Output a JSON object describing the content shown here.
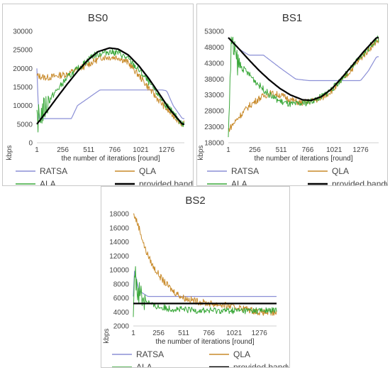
{
  "colors": {
    "RATSA": "#8b8fd6",
    "QLA": "#c88a2a",
    "ALA": "#3aa83a",
    "provided bandwidth": "#000000"
  },
  "chart_data": [
    {
      "type": "line",
      "title": "BS0",
      "xlabel": "the number of iterations [round]",
      "ylabel": "kbps",
      "xlim": [
        1,
        1450
      ],
      "ylim": [
        0,
        30000
      ],
      "xticks": [
        "1",
        "256",
        "511",
        "766",
        "1021",
        "1276"
      ],
      "yticks": [
        "0",
        "5000",
        "10000",
        "15000",
        "20000",
        "25000",
        "30000"
      ],
      "legend_position": "bottom",
      "series": [
        {
          "name": "RATSA",
          "x": [
            1,
            20,
            340,
            400,
            620,
            700,
            1230,
            1276,
            1340,
            1430
          ],
          "values": [
            20000,
            6500,
            6500,
            10000,
            14200,
            14200,
            14200,
            14000,
            10000,
            6500
          ]
        },
        {
          "name": "QLA",
          "x": [
            1,
            100,
            300,
            500,
            640,
            800,
            900,
            1021,
            1150,
            1276,
            1430
          ],
          "values": [
            18000,
            17500,
            18500,
            21000,
            23000,
            23000,
            21500,
            17500,
            13000,
            9000,
            5000
          ]
        },
        {
          "name": "ALA",
          "x": [
            1,
            50,
            150,
            300,
            450,
            550,
            700,
            800,
            900,
            1021,
            1150,
            1276,
            1430
          ],
          "values": [
            6000,
            8000,
            12500,
            17500,
            21000,
            23500,
            24500,
            24200,
            22500,
            19000,
            14500,
            10000,
            5000
          ]
        },
        {
          "name": "provided bandwidth",
          "x": [
            1,
            100,
            200,
            300,
            400,
            500,
            600,
            715,
            800,
            900,
            1000,
            1100,
            1200,
            1300,
            1430
          ],
          "values": [
            5000,
            8500,
            12200,
            15800,
            19200,
            22200,
            24500,
            25500,
            25200,
            23600,
            20800,
            17300,
            13300,
            9200,
            5000
          ]
        }
      ]
    },
    {
      "type": "line",
      "title": "BS1",
      "xlabel": "the number of iterations [round]",
      "ylabel": "kbps",
      "xlim": [
        1,
        1450
      ],
      "ylim": [
        18000,
        53000
      ],
      "xticks": [
        "1",
        "256",
        "511",
        "766",
        "1021",
        "1276"
      ],
      "yticks": [
        "18000",
        "23000",
        "28000",
        "33000",
        "38000",
        "43000",
        "48000",
        "53000"
      ],
      "legend_position": "bottom",
      "series": [
        {
          "name": "RATSA",
          "x": [
            1,
            100,
            200,
            340,
            500,
            650,
            780,
            1021,
            1276,
            1350,
            1430
          ],
          "values": [
            51000,
            47500,
            45500,
            45500,
            41500,
            38000,
            37500,
            37500,
            37500,
            40500,
            45000
          ]
        },
        {
          "name": "QLA",
          "x": [
            1,
            100,
            200,
            300,
            400,
            500,
            600,
            700,
            800,
            900,
            1021,
            1150,
            1276,
            1430
          ],
          "values": [
            22000,
            26000,
            29500,
            32000,
            33500,
            33000,
            31500,
            30500,
            31000,
            32000,
            35000,
            39500,
            44500,
            50000
          ]
        },
        {
          "name": "ALA",
          "x": [
            1,
            30,
            60,
            100,
            200,
            300,
            400,
            500,
            600,
            700,
            800,
            900,
            1021,
            1150,
            1276,
            1430
          ],
          "values": [
            20000,
            50000,
            46000,
            42500,
            39500,
            36000,
            33000,
            31000,
            30000,
            30200,
            31000,
            32500,
            35500,
            40000,
            45000,
            50500
          ]
        },
        {
          "name": "provided bandwidth",
          "x": [
            1,
            100,
            200,
            300,
            400,
            500,
            600,
            715,
            800,
            900,
            1000,
            1100,
            1200,
            1300,
            1430
          ],
          "values": [
            51000,
            47600,
            44000,
            40600,
            37600,
            35000,
            33000,
            31500,
            31300,
            32500,
            35000,
            38600,
            42400,
            46400,
            51000
          ]
        }
      ]
    },
    {
      "type": "line",
      "title": "BS2",
      "xlabel": "the number of iterations [round]",
      "ylabel": "kbps",
      "xlim": [
        1,
        1450
      ],
      "ylim": [
        2000,
        18000
      ],
      "xticks": [
        "1",
        "256",
        "511",
        "766",
        "1021",
        "1276"
      ],
      "yticks": [
        "2000",
        "4000",
        "6000",
        "8000",
        "10000",
        "12000",
        "14000",
        "16000",
        "18000"
      ],
      "legend_position": "bottom",
      "series": [
        {
          "name": "RATSA",
          "x": [
            1,
            10,
            60,
            150,
            1430
          ],
          "values": [
            6200,
            10000,
            7000,
            6200,
            6200
          ]
        },
        {
          "name": "QLA",
          "x": [
            1,
            20,
            60,
            120,
            200,
            300,
            400,
            511,
            650,
            766,
            900,
            1021,
            1150,
            1276,
            1430
          ],
          "values": [
            18000,
            17500,
            16000,
            13000,
            10500,
            8500,
            7000,
            6000,
            5500,
            5200,
            5000,
            4700,
            4400,
            4000,
            3800
          ]
        },
        {
          "name": "ALA",
          "x": [
            1,
            15,
            40,
            100,
            200,
            300,
            511,
            766,
            1021,
            1276,
            1430
          ],
          "values": [
            5000,
            10000,
            7500,
            6000,
            4900,
            4600,
            4300,
            4200,
            4200,
            4200,
            4200
          ]
        },
        {
          "name": "provided bandwidth",
          "x": [
            1,
            1430
          ],
          "values": [
            5200,
            5200
          ]
        }
      ]
    }
  ]
}
